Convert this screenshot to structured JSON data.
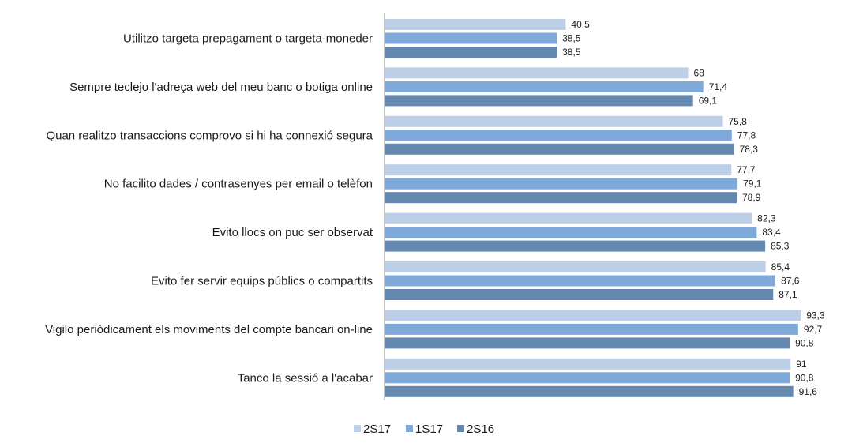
{
  "chart_data": {
    "type": "bar",
    "orientation": "horizontal",
    "categories": [
      "Utilitzo targeta prepagament o targeta-moneder",
      "Sempre teclejo l'adreça web del meu banc o botiga online",
      "Quan realitzo transaccions comprovo si hi ha connexió segura",
      "No facilito dades / contrasenyes per email o telèfon",
      "Evito llocs on puc ser observat",
      "Evito fer servir equips públics o compartits",
      "Vigilo periòdicament els moviments del compte bancari on-line",
      "Tanco la sessió a l'acabar"
    ],
    "series": [
      {
        "name": "2S17",
        "color": "#bccfe6",
        "values": [
          40.5,
          68,
          75.8,
          77.7,
          82.3,
          85.4,
          93.3,
          91
        ],
        "labels": [
          "40,5",
          "68",
          "75,8",
          "77,7",
          "82,3",
          "85,4",
          "93,3",
          "91"
        ]
      },
      {
        "name": "1S17",
        "color": "#7ea9d8",
        "values": [
          38.5,
          71.4,
          77.8,
          79.1,
          83.4,
          87.6,
          92.7,
          90.8
        ],
        "labels": [
          "38,5",
          "71,4",
          "77,8",
          "79,1",
          "83,4",
          "87,6",
          "92,7",
          "90,8"
        ]
      },
      {
        "name": "2S16",
        "color": "#6488b0",
        "values": [
          38.5,
          69.1,
          78.3,
          78.9,
          85.3,
          87.1,
          90.8,
          91.6
        ],
        "labels": [
          "38,5",
          "69,1",
          "78,3",
          "78,9",
          "85,3",
          "87,1",
          "90,8",
          "91,6"
        ]
      }
    ],
    "xlim": [
      0,
      100
    ],
    "grid": false,
    "legend_position": "bottom"
  }
}
